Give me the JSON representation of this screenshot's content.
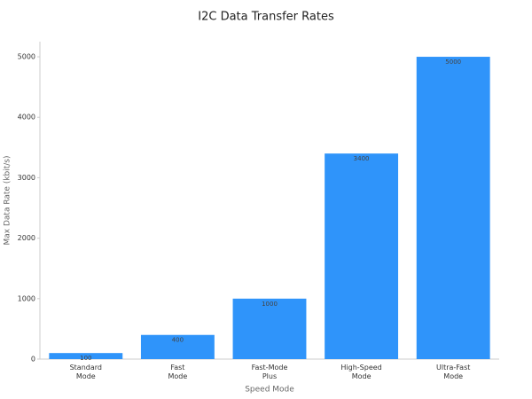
{
  "chart_data": {
    "type": "bar",
    "title": "I2C Data Transfer Rates",
    "x_label": "Speed Mode",
    "y_label": "Max Data Rate (kbit/s)",
    "categories": [
      "Standard Mode",
      "Fast Mode",
      "Fast-Mode Plus",
      "High-Speed Mode",
      "Ultra-Fast Mode"
    ],
    "values": [
      100,
      400,
      1000,
      3400,
      5000
    ],
    "color": "#2f94fa",
    "ylim": [
      0,
      5250
    ],
    "yticks": [
      0,
      1000,
      2000,
      3000,
      4000,
      5000
    ],
    "grid": false
  }
}
